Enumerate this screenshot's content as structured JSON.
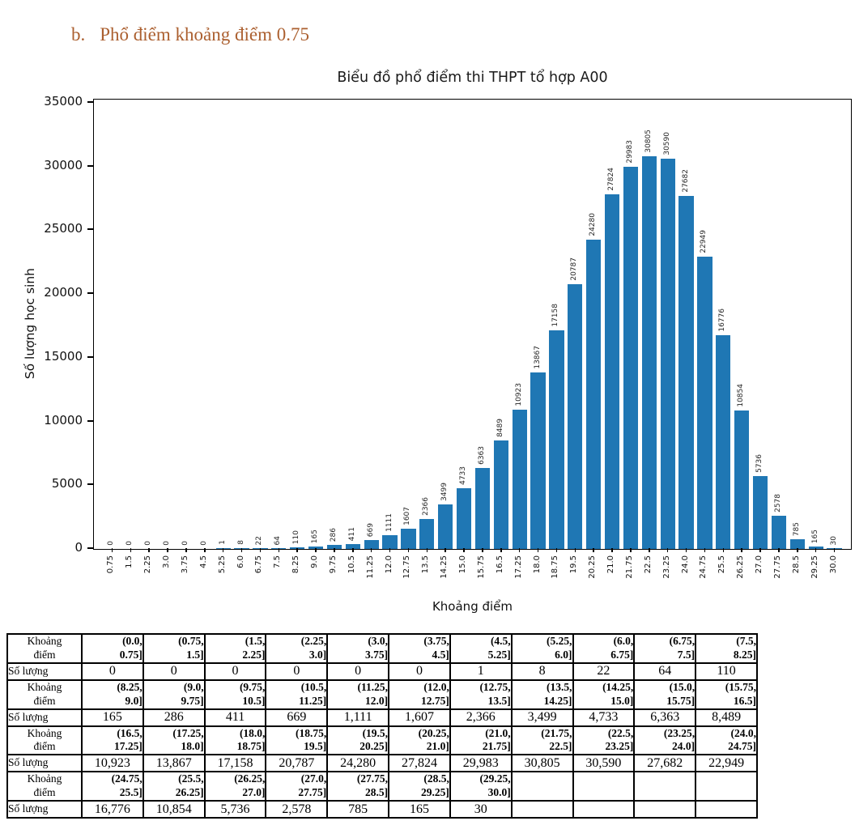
{
  "heading": {
    "marker": "b.",
    "text": "Phổ điểm khoảng điểm 0.75"
  },
  "chart_data": {
    "type": "bar",
    "title": "Biểu đồ phổ điểm thi THPT tổ hợp A00",
    "xlabel": "Khoảng điểm",
    "ylabel": "Số lượng học sinh",
    "bar_color": "#1f77b4",
    "ylim": [
      0,
      35000
    ],
    "yticks": [
      0,
      5000,
      10000,
      15000,
      20000,
      25000,
      30000,
      35000
    ],
    "grid": false,
    "legend": "none",
    "categories": [
      "0.75",
      "1.5",
      "2.25",
      "3.0",
      "3.75",
      "4.5",
      "5.25",
      "6.0",
      "6.75",
      "7.5",
      "8.25",
      "9.0",
      "9.75",
      "10.5",
      "11.25",
      "12.0",
      "12.75",
      "13.5",
      "14.25",
      "15.0",
      "15.75",
      "16.5",
      "17.25",
      "18.0",
      "18.75",
      "19.5",
      "20.25",
      "21.0",
      "21.75",
      "22.5",
      "23.25",
      "24.0",
      "24.75",
      "25.5",
      "26.25",
      "27.0",
      "27.75",
      "28.5",
      "29.25",
      "30.0"
    ],
    "values": [
      0,
      0,
      0,
      0,
      0,
      0,
      1,
      8,
      22,
      64,
      110,
      165,
      286,
      411,
      669,
      1111,
      1607,
      2366,
      3499,
      4733,
      6363,
      8489,
      10923,
      13867,
      17158,
      20787,
      24280,
      27824,
      29983,
      30805,
      30590,
      27682,
      22949,
      16776,
      10854,
      5736,
      2578,
      785,
      165,
      30
    ]
  },
  "table": {
    "row_headers": {
      "interval": "Khoảng điểm",
      "count": "Số lượng"
    },
    "columns_per_row": 11,
    "groups": [
      {
        "intervals": [
          "(0.0, 0.75]",
          "(0.75, 1.5]",
          "(1.5, 2.25]",
          "(2.25, 3.0]",
          "(3.0, 3.75]",
          "(3.75, 4.5]",
          "(4.5, 5.25]",
          "(5.25, 6.0]",
          "(6.0, 6.75]",
          "(6.75, 7.5]",
          "(7.5, 8.25]"
        ],
        "counts": [
          "0",
          "0",
          "0",
          "0",
          "0",
          "0",
          "1",
          "8",
          "22",
          "64",
          "110"
        ]
      },
      {
        "intervals": [
          "(8.25, 9.0]",
          "(9.0, 9.75]",
          "(9.75, 10.5]",
          "(10.5, 11.25]",
          "(11.25, 12.0]",
          "(12.0, 12.75]",
          "(12.75, 13.5]",
          "(13.5, 14.25]",
          "(14.25, 15.0]",
          "(15.0, 15.75]",
          "(15.75, 16.5]"
        ],
        "counts": [
          "165",
          "286",
          "411",
          "669",
          "1,111",
          "1,607",
          "2,366",
          "3,499",
          "4,733",
          "6,363",
          "8,489"
        ]
      },
      {
        "intervals": [
          "(16.5, 17.25]",
          "(17.25, 18.0]",
          "(18.0, 18.75]",
          "(18.75, 19.5]",
          "(19.5, 20.25]",
          "(20.25, 21.0]",
          "(21.0, 21.75]",
          "(21.75, 22.5]",
          "(22.5, 23.25]",
          "(23.25, 24.0]",
          "(24.0, 24.75]"
        ],
        "counts": [
          "10,923",
          "13,867",
          "17,158",
          "20,787",
          "24,280",
          "27,824",
          "29,983",
          "30,805",
          "30,590",
          "27,682",
          "22,949"
        ]
      },
      {
        "intervals": [
          "(24.75, 25.5]",
          "(25.5, 26.25]",
          "(26.25, 27.0]",
          "(27.0, 27.75]",
          "(27.75, 28.5]",
          "(28.5, 29.25]",
          "(29.25, 30.0]",
          "",
          "",
          "",
          ""
        ],
        "counts": [
          "16,776",
          "10,854",
          "5,736",
          "2,578",
          "785",
          "165",
          "30",
          "",
          "",
          "",
          ""
        ]
      }
    ]
  }
}
